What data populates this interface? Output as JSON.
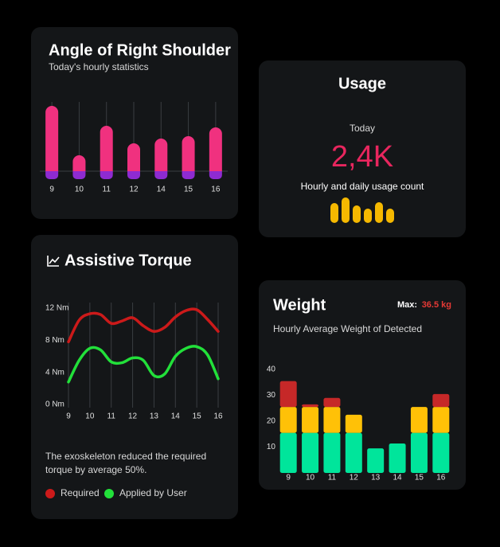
{
  "chart_data": [
    {
      "type": "bar",
      "title": "Angle of Right Shoulder",
      "subtitle": "Today's hourly statistics",
      "categories": [
        "9",
        "10",
        "11",
        "12",
        "14",
        "15",
        "16"
      ],
      "series": [
        {
          "color": "#f0317f",
          "values": [
            82,
            20,
            57,
            35,
            41,
            44,
            55
          ]
        },
        {
          "color": "#8e2bd1",
          "values": [
            -10,
            -10,
            -10,
            -10,
            -10,
            -10,
            -10
          ]
        }
      ],
      "ylim": [
        -12,
        90
      ]
    },
    {
      "type": "bar",
      "title": "Usage",
      "period": "Today",
      "total": "2,4K",
      "subtitle": "Hourly and daily usage count",
      "values": [
        25,
        32,
        22,
        18,
        26,
        18
      ],
      "color": "#f5b800",
      "ylim": [
        0,
        35
      ]
    },
    {
      "type": "line",
      "title": "Assistive Torque",
      "note_lines": [
        "The exoskeleton reduced the required",
        "torque by average 50%."
      ],
      "x": [
        9,
        9.5,
        10,
        10.5,
        11,
        11.5,
        12,
        12.5,
        13,
        13.5,
        14,
        14.5,
        15,
        15.5,
        16
      ],
      "series": [
        {
          "name": "Required",
          "color": "#cc1a1a",
          "values": [
            7.8,
            10.5,
            11.3,
            11.2,
            10.1,
            10.4,
            10.8,
            9.8,
            9.1,
            9.6,
            10.9,
            11.7,
            11.8,
            10.6,
            9.1
          ]
        },
        {
          "name": "Applied by User",
          "color": "#22e03a",
          "values": [
            2.8,
            5.5,
            7.0,
            6.8,
            5.3,
            5.2,
            5.8,
            5.5,
            3.6,
            3.8,
            6.0,
            7.0,
            7.2,
            6.2,
            3.2
          ]
        }
      ],
      "xlim": [
        9,
        16
      ],
      "xticks": [
        9,
        10,
        11,
        12,
        13,
        14,
        15,
        16
      ],
      "ylim": [
        0,
        12
      ],
      "yticks": [
        {
          "value": 0,
          "label": "0 Nm"
        },
        {
          "value": 4,
          "label": "4 Nm"
        },
        {
          "value": 8,
          "label": "8 Nm"
        },
        {
          "value": 12,
          "label": "12 Nm"
        }
      ],
      "grid": true
    },
    {
      "type": "stacked_bar",
      "title": "Weight",
      "max_label": "Max:",
      "max_value": "36.5 kg",
      "subtitle": "Hourly Average Weight of Detected",
      "categories": [
        "9",
        "10",
        "11",
        "12",
        "13",
        "14",
        "15",
        "16"
      ],
      "series": [
        {
          "color": "#00e59b",
          "values": [
            15.5,
            15.5,
            15.5,
            15.5,
            9.5,
            11.4,
            15.5,
            15.5
          ]
        },
        {
          "color": "#ffc107",
          "values": [
            10,
            10,
            10,
            7,
            0,
            0,
            10,
            10
          ]
        },
        {
          "color": "#c62828",
          "values": [
            10,
            1,
            3.5,
            0,
            0,
            0,
            0,
            5
          ]
        }
      ],
      "ylim": [
        0,
        40
      ],
      "yticks": [
        10,
        20,
        30,
        40
      ]
    }
  ]
}
